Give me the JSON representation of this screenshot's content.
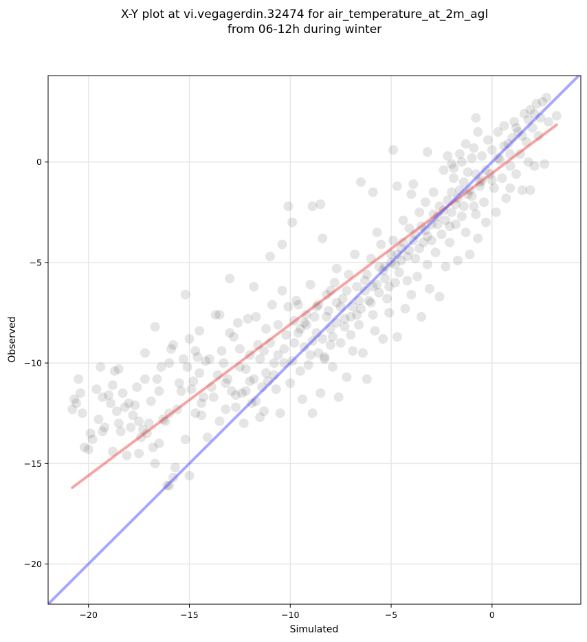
{
  "chart_data": {
    "type": "scatter",
    "title": [
      "X-Y plot at vi.vegagerdin.32474 for air_temperature_at_2m_agl",
      "from 06-12h during winter"
    ],
    "xlabel": "Simulated",
    "ylabel": "Observed",
    "xlim": [
      -22.0,
      4.4
    ],
    "ylim": [
      -22.0,
      4.3
    ],
    "xticks": [
      -20,
      -15,
      -10,
      -5,
      0
    ],
    "xtick_labels": [
      "−20",
      "−15",
      "−10",
      "−5",
      "0"
    ],
    "yticks": [
      -20,
      -15,
      -10,
      -5,
      0
    ],
    "ytick_labels": [
      "−20",
      "−15",
      "−10",
      "−5",
      "0"
    ],
    "grid": true,
    "point_color": "#000000",
    "point_alpha": 0.1,
    "lines": [
      {
        "kind": "regression",
        "color": "#e8383a",
        "alpha": 0.45,
        "x": [
          -20.8,
          3.2
        ],
        "y": [
          -16.2,
          1.85
        ]
      },
      {
        "kind": "identity",
        "color": "#3b3bff",
        "alpha": 0.45,
        "x": [
          -22.0,
          4.4
        ],
        "y": [
          -22.0,
          4.4
        ]
      }
    ],
    "points": [
      [
        -20.8,
        -12.3
      ],
      [
        -20.7,
        -11.8
      ],
      [
        -20.5,
        -10.8
      ],
      [
        -20.6,
        -12.0
      ],
      [
        -20.3,
        -12.5
      ],
      [
        -20.2,
        -14.2
      ],
      [
        -20.0,
        -14.3
      ],
      [
        -19.8,
        -13.8
      ],
      [
        -19.9,
        -13.5
      ],
      [
        -20.4,
        -11.5
      ],
      [
        -19.6,
        -11.3
      ],
      [
        -19.4,
        -10.2
      ],
      [
        -19.5,
        -12.8
      ],
      [
        -19.3,
        -13.4
      ],
      [
        -19.2,
        -13.2
      ],
      [
        -19.0,
        -11.6
      ],
      [
        -18.9,
        -12.0
      ],
      [
        -18.8,
        -11.1
      ],
      [
        -18.7,
        -10.4
      ],
      [
        -18.6,
        -12.4
      ],
      [
        -18.5,
        -13.0
      ],
      [
        -18.5,
        -10.3
      ],
      [
        -18.4,
        -13.4
      ],
      [
        -18.3,
        -11.5
      ],
      [
        -18.2,
        -12.2
      ],
      [
        -18.1,
        -14.6
      ],
      [
        -18.0,
        -12.0
      ],
      [
        -17.9,
        -13.2
      ],
      [
        -17.8,
        -12.6
      ],
      [
        -17.7,
        -12.1
      ],
      [
        -17.6,
        -11.2
      ],
      [
        -17.5,
        -12.9
      ],
      [
        -17.4,
        -13.7
      ],
      [
        -17.3,
        -13.3
      ],
      [
        -17.2,
        -9.5
      ],
      [
        -17.1,
        -13.5
      ],
      [
        -17.0,
        -13.0
      ],
      [
        -16.9,
        -11.9
      ],
      [
        -16.8,
        -14.2
      ],
      [
        -16.7,
        -15.0
      ],
      [
        -16.7,
        -8.2
      ],
      [
        -16.6,
        -10.8
      ],
      [
        -16.5,
        -11.4
      ],
      [
        -16.4,
        -10.2
      ],
      [
        -16.3,
        -12.8
      ],
      [
        -16.2,
        -12.9
      ],
      [
        -16.1,
        -16.1
      ],
      [
        -16.0,
        -16.1
      ],
      [
        -16.0,
        -10.0
      ],
      [
        -15.9,
        -9.3
      ],
      [
        -15.8,
        -15.7
      ],
      [
        -15.8,
        -9.1
      ],
      [
        -15.7,
        -15.2
      ],
      [
        -15.6,
        -12.3
      ],
      [
        -15.5,
        -11.0
      ],
      [
        -15.4,
        -11.4
      ],
      [
        -15.3,
        -9.8
      ],
      [
        -15.2,
        -6.6
      ],
      [
        -15.1,
        -10.2
      ],
      [
        -15.0,
        -15.6
      ],
      [
        -14.9,
        -11.3
      ],
      [
        -14.8,
        -10.9
      ],
      [
        -14.7,
        -9.4
      ],
      [
        -14.7,
        -12.5
      ],
      [
        -14.6,
        -9.7
      ],
      [
        -14.5,
        -10.5
      ],
      [
        -14.4,
        -12.6
      ],
      [
        -14.3,
        -11.7
      ],
      [
        -14.2,
        -9.9
      ],
      [
        -14.1,
        -13.7
      ],
      [
        -14.0,
        -9.8
      ],
      [
        -13.9,
        -11.2
      ],
      [
        -13.8,
        -11.7
      ],
      [
        -13.7,
        -7.6
      ],
      [
        -13.6,
        -10.6
      ],
      [
        -13.5,
        -12.9
      ],
      [
        -13.4,
        -9.4
      ],
      [
        -13.3,
        -10.0
      ],
      [
        -13.2,
        -12.3
      ],
      [
        -13.1,
        -10.8
      ],
      [
        -13.0,
        -8.5
      ],
      [
        -12.9,
        -11.4
      ],
      [
        -12.8,
        -8.7
      ],
      [
        -12.7,
        -11.6
      ],
      [
        -12.6,
        -8.0
      ],
      [
        -12.5,
        -9.3
      ],
      [
        -12.4,
        -11.5
      ],
      [
        -12.3,
        -13.0
      ],
      [
        -12.2,
        -10.3
      ],
      [
        -12.1,
        -7.8
      ],
      [
        -12.0,
        -9.6
      ],
      [
        -11.9,
        -12.0
      ],
      [
        -11.8,
        -10.8
      ],
      [
        -11.7,
        -7.7
      ],
      [
        -11.6,
        -9.1
      ],
      [
        -11.5,
        -12.7
      ],
      [
        -11.4,
        -11.2
      ],
      [
        -11.3,
        -12.4
      ],
      [
        -11.2,
        -8.3
      ],
      [
        -11.1,
        -10.9
      ],
      [
        -11.0,
        -9.0
      ],
      [
        -10.9,
        -7.1
      ],
      [
        -10.8,
        -10.6
      ],
      [
        -10.7,
        -11.3
      ],
      [
        -10.6,
        -9.6
      ],
      [
        -10.5,
        -12.5
      ],
      [
        -10.4,
        -6.4
      ],
      [
        -10.3,
        -10.0
      ],
      [
        -10.2,
        -8.6
      ],
      [
        -10.1,
        -7.2
      ],
      [
        -10.0,
        -11.0
      ],
      [
        -9.9,
        -9.9
      ],
      [
        -9.8,
        -7.9
      ],
      [
        -9.7,
        -6.9
      ],
      [
        -9.6,
        -8.5
      ],
      [
        -9.5,
        -10.4
      ],
      [
        -9.4,
        -11.8
      ],
      [
        -9.3,
        -9.2
      ],
      [
        -9.2,
        -8.1
      ],
      [
        -9.1,
        -10.1
      ],
      [
        -9.0,
        -6.1
      ],
      [
        -8.9,
        -12.5
      ],
      [
        -8.8,
        -7.7
      ],
      [
        -8.7,
        -7.2
      ],
      [
        -8.6,
        -9.5
      ],
      [
        -8.5,
        -11.5
      ],
      [
        -8.4,
        -8.8
      ],
      [
        -8.3,
        -9.7
      ],
      [
        -8.2,
        -6.6
      ],
      [
        -8.1,
        -7.4
      ],
      [
        -8.0,
        -8.3
      ],
      [
        -7.9,
        -10.2
      ],
      [
        -7.8,
        -6.0
      ],
      [
        -7.7,
        -5.3
      ],
      [
        -7.6,
        -11.7
      ],
      [
        -7.5,
        -9.0
      ],
      [
        -7.4,
        -6.8
      ],
      [
        -7.3,
        -8.2
      ],
      [
        -7.2,
        -10.7
      ],
      [
        -7.1,
        -5.6
      ],
      [
        -7.0,
        -7.7
      ],
      [
        -6.9,
        -9.4
      ],
      [
        -6.8,
        -4.6
      ],
      [
        -6.7,
        -6.2
      ],
      [
        -6.6,
        -8.1
      ],
      [
        -6.5,
        -7.3
      ],
      [
        -6.4,
        -9.5
      ],
      [
        -6.3,
        -5.9
      ],
      [
        -6.2,
        -10.8
      ],
      [
        -6.1,
        -6.9
      ],
      [
        -6.0,
        -4.8
      ],
      [
        -5.9,
        -7.6
      ],
      [
        -5.8,
        -8.4
      ],
      [
        -5.7,
        -3.5
      ],
      [
        -5.6,
        -6.5
      ],
      [
        -5.5,
        -4.1
      ],
      [
        -5.4,
        -8.8
      ],
      [
        -5.3,
        -5.2
      ],
      [
        -5.2,
        -6.8
      ],
      [
        -5.1,
        -7.5
      ],
      [
        -5.0,
        -4.6
      ],
      [
        -4.9,
        -3.9
      ],
      [
        -4.8,
        -6.0
      ],
      [
        -4.7,
        -8.7
      ],
      [
        -4.6,
        -5.5
      ],
      [
        -4.5,
        -4.3
      ],
      [
        -4.4,
        -2.9
      ],
      [
        -4.3,
        -7.3
      ],
      [
        -4.2,
        -5.9
      ],
      [
        -4.1,
        -3.3
      ],
      [
        -4.0,
        -6.6
      ],
      [
        -3.9,
        -1.1
      ],
      [
        -3.8,
        -4.8
      ],
      [
        -3.7,
        -5.7
      ],
      [
        -3.6,
        -2.5
      ],
      [
        -3.5,
        -7.7
      ],
      [
        -3.4,
        -4.0
      ],
      [
        -3.3,
        -2.0
      ],
      [
        -3.2,
        -5.1
      ],
      [
        -3.1,
        -6.3
      ],
      [
        -3.0,
        -3.1
      ],
      [
        -2.9,
        -1.5
      ],
      [
        -2.8,
        -4.5
      ],
      [
        -2.7,
        -2.7
      ],
      [
        -2.6,
        -6.7
      ],
      [
        -2.5,
        -3.6
      ],
      [
        -2.4,
        -0.4
      ],
      [
        -2.3,
        -5.2
      ],
      [
        -2.2,
        -1.9
      ],
      [
        -2.1,
        -4.0
      ],
      [
        -2.0,
        -2.5
      ],
      [
        -1.9,
        -0.8
      ],
      [
        -1.8,
        -3.1
      ],
      [
        -1.7,
        -4.9
      ],
      [
        -1.6,
        -1.4
      ],
      [
        -1.5,
        0.0
      ],
      [
        -1.4,
        -2.2
      ],
      [
        -1.3,
        -3.5
      ],
      [
        -1.2,
        -0.5
      ],
      [
        -1.1,
        -4.6
      ],
      [
        -1.0,
        -1.7
      ],
      [
        -0.9,
        0.7
      ],
      [
        -0.8,
        -2.6
      ],
      [
        -0.7,
        -3.8
      ],
      [
        -0.6,
        -1.0
      ],
      [
        -0.5,
        0.3
      ],
      [
        -0.4,
        -2.0
      ],
      [
        -0.3,
        -3.0
      ],
      [
        -0.2,
        1.1
      ],
      [
        -0.1,
        -0.6
      ],
      [
        0.0,
        0.6
      ],
      [
        0.1,
        -1.3
      ],
      [
        0.2,
        -2.5
      ],
      [
        0.3,
        1.5
      ],
      [
        0.4,
        0.1
      ],
      [
        0.5,
        -0.8
      ],
      [
        0.6,
        1.8
      ],
      [
        0.7,
        -1.8
      ],
      [
        0.8,
        0.9
      ],
      [
        0.9,
        -0.2
      ],
      [
        1.0,
        1.2
      ],
      [
        1.1,
        2.0
      ],
      [
        1.2,
        -0.6
      ],
      [
        1.3,
        1.5
      ],
      [
        1.4,
        0.4
      ],
      [
        1.5,
        -1.4
      ],
      [
        1.6,
        2.4
      ],
      [
        1.7,
        1.0
      ],
      [
        1.8,
        0.0
      ],
      [
        1.9,
        2.6
      ],
      [
        2.0,
        1.7
      ],
      [
        2.1,
        -0.2
      ],
      [
        2.2,
        2.9
      ],
      [
        2.3,
        1.3
      ],
      [
        2.4,
        2.2
      ],
      [
        2.5,
        3.0
      ],
      [
        2.6,
        -0.1
      ],
      [
        2.7,
        3.2
      ],
      [
        2.8,
        2.0
      ],
      [
        3.2,
        2.3
      ],
      [
        -13.5,
        -7.6
      ],
      [
        -13.0,
        -5.8
      ],
      [
        -11.8,
        -6.2
      ],
      [
        -11.0,
        -4.7
      ],
      [
        -10.4,
        -4.1
      ],
      [
        -10.1,
        -2.2
      ],
      [
        -9.9,
        -3.0
      ],
      [
        -8.9,
        -2.2
      ],
      [
        -8.4,
        -3.8
      ],
      [
        -8.5,
        -2.1
      ],
      [
        -6.5,
        -1.0
      ],
      [
        -5.9,
        -1.5
      ],
      [
        -4.9,
        0.6
      ],
      [
        -4.7,
        -1.2
      ],
      [
        -4.0,
        -1.6
      ],
      [
        -3.2,
        0.5
      ],
      [
        -2.0,
        -0.1
      ],
      [
        -0.8,
        2.2
      ],
      [
        0.9,
        -1.3
      ],
      [
        1.9,
        -1.4
      ],
      [
        -9.6,
        -7.1
      ],
      [
        -9.3,
        -8.0
      ],
      [
        -9.0,
        -9.6
      ],
      [
        -8.7,
        -8.5
      ],
      [
        -8.2,
        -7.7
      ],
      [
        -7.9,
        -8.7
      ],
      [
        -7.5,
        -7.2
      ],
      [
        -7.2,
        -6.4
      ],
      [
        -6.9,
        -7.2
      ],
      [
        -6.6,
        -6.9
      ],
      [
        -6.2,
        -5.6
      ],
      [
        -5.9,
        -6.2
      ],
      [
        -5.6,
        -5.2
      ],
      [
        -5.3,
        -5.8
      ],
      [
        -5.0,
        -5.0
      ],
      [
        -4.7,
        -4.6
      ],
      [
        -4.4,
        -4.0
      ],
      [
        -4.1,
        -4.4
      ],
      [
        -3.8,
        -3.6
      ],
      [
        -3.5,
        -3.2
      ],
      [
        -3.2,
        -3.7
      ],
      [
        -2.9,
        -2.6
      ],
      [
        -2.6,
        -2.2
      ],
      [
        -2.3,
        -2.9
      ],
      [
        -2.0,
        -1.5
      ],
      [
        -1.7,
        -1.8
      ],
      [
        -1.4,
        -1.0
      ],
      [
        -1.1,
        -1.4
      ],
      [
        -0.8,
        -0.6
      ],
      [
        -0.5,
        -0.9
      ],
      [
        -8.0,
        -9.1
      ],
      [
        -7.7,
        -8.0
      ],
      [
        -7.3,
        -7.8
      ],
      [
        -7.0,
        -8.6
      ],
      [
        -6.7,
        -7.6
      ],
      [
        -6.3,
        -6.4
      ],
      [
        -6.0,
        -7.0
      ],
      [
        -5.7,
        -6.1
      ],
      [
        -5.4,
        -5.4
      ],
      [
        -5.1,
        -6.2
      ],
      [
        -4.8,
        -5.1
      ],
      [
        -4.5,
        -4.9
      ],
      [
        -4.2,
        -4.7
      ],
      [
        -3.9,
        -3.9
      ],
      [
        -3.6,
        -4.3
      ],
      [
        -3.3,
        -3.4
      ],
      [
        -3.0,
        -3.9
      ],
      [
        -2.7,
        -3.1
      ],
      [
        -2.4,
        -2.4
      ],
      [
        -2.1,
        -3.2
      ],
      [
        -1.8,
        -2.1
      ],
      [
        -1.5,
        -2.7
      ],
      [
        -1.2,
        -1.6
      ],
      [
        -0.9,
        -2.2
      ],
      [
        -0.6,
        -1.2
      ],
      [
        -0.3,
        -0.4
      ],
      [
        0.0,
        -0.9
      ],
      [
        0.3,
        0.2
      ],
      [
        0.6,
        0.8
      ],
      [
        0.9,
        0.4
      ],
      [
        1.2,
        1.7
      ],
      [
        1.5,
        1.3
      ],
      [
        1.8,
        2.1
      ],
      [
        2.1,
        2.4
      ],
      [
        -2.2,
        0.3
      ],
      [
        -1.9,
        -0.3
      ],
      [
        -1.6,
        0.4
      ],
      [
        -1.3,
        0.9
      ],
      [
        -1.0,
        0.2
      ],
      [
        -0.7,
        1.5
      ],
      [
        -10.6,
        -8.1
      ],
      [
        -10.3,
        -9.3
      ],
      [
        -9.8,
        -9.0
      ],
      [
        -9.5,
        -8.3
      ],
      [
        -9.2,
        -7.6
      ],
      [
        -8.9,
        -8.9
      ],
      [
        -8.6,
        -7.1
      ],
      [
        -8.3,
        -9.8
      ],
      [
        -8.0,
        -6.4
      ],
      [
        -7.7,
        -7.0
      ],
      [
        -12.5,
        -10.2
      ],
      [
        -12.0,
        -10.9
      ],
      [
        -11.5,
        -9.8
      ],
      [
        -11.2,
        -10.5
      ],
      [
        -10.8,
        -10.0
      ],
      [
        -13.2,
        -11.0
      ],
      [
        -12.7,
        -12.2
      ],
      [
        -12.2,
        -11.4
      ],
      [
        -11.7,
        -11.9
      ],
      [
        -11.3,
        -9.4
      ],
      [
        -14.4,
        -12.0
      ],
      [
        -15.2,
        -13.8
      ],
      [
        -16.0,
        -12.5
      ],
      [
        -16.5,
        -14.0
      ],
      [
        -17.5,
        -14.5
      ],
      [
        -18.8,
        -14.4
      ],
      [
        -19.3,
        -11.7
      ],
      [
        -17.2,
        -10.8
      ],
      [
        -15.0,
        -8.8
      ],
      [
        -14.5,
        -8.4
      ]
    ]
  }
}
